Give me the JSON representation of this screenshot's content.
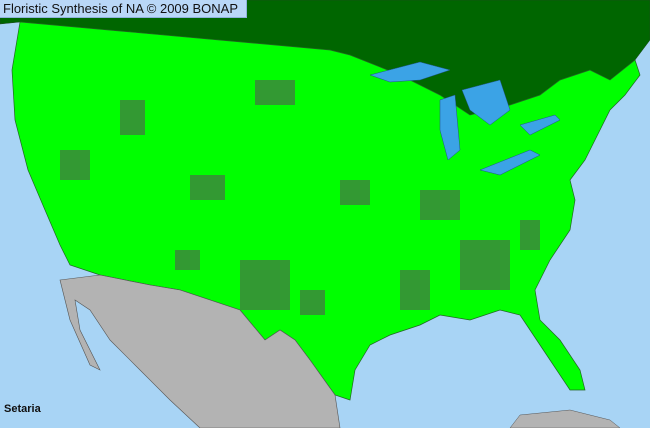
{
  "header": {
    "title": "Floristic Synthesis of NA © 2009 BONAP"
  },
  "map": {
    "taxon": "Setaria",
    "colors": {
      "ocean": "#a8d4f5",
      "canada": "#006600",
      "present_county": "#00ff00",
      "dense_county": "#339933",
      "mexico": "#b3b3b3",
      "lakes": "#3ba3e6",
      "county_border": "#333333"
    }
  }
}
